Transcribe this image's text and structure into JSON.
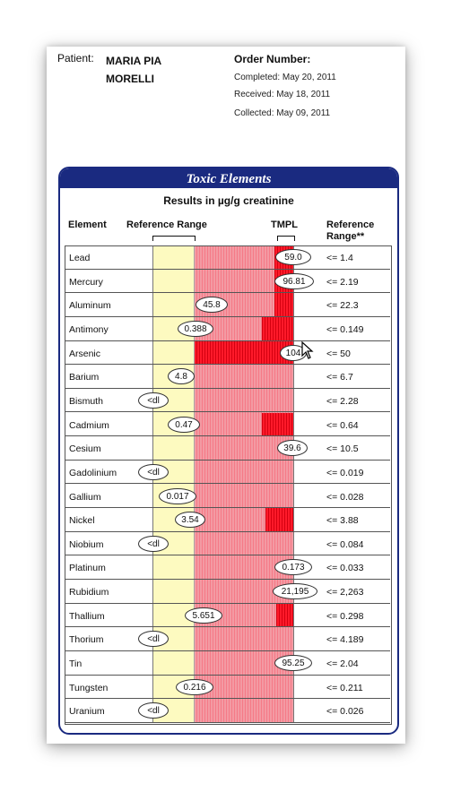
{
  "patient": {
    "label": "Patient:",
    "name_line1": "MARIA PIA",
    "name_line2": "MORELLI"
  },
  "order": {
    "label": "Order Number:",
    "completed": "Completed: May 20, 2011",
    "received": "Received: May 18, 2011",
    "collected": "Collected: May 09, 2011"
  },
  "panel": {
    "title": "Toxic Elements",
    "units": "Results in µg/g creatinine",
    "headers": {
      "element": "Element",
      "reference_range": "Reference Range",
      "tmpl": "TMPL",
      "ref_range_col": "Reference Range**"
    }
  },
  "rows": [
    {
      "element": "Lead",
      "result": "59.0",
      "reference": "<= 1.4"
    },
    {
      "element": "Mercury",
      "result": "96.81",
      "reference": "<= 2.19"
    },
    {
      "element": "Aluminum",
      "result": "45.8",
      "reference": "<= 22.3"
    },
    {
      "element": "Antimony",
      "result": "0.388",
      "reference": "<= 0.149"
    },
    {
      "element": "Arsenic",
      "result": "104",
      "reference": "<= 50"
    },
    {
      "element": "Barium",
      "result": "4.8",
      "reference": "<= 6.7"
    },
    {
      "element": "Bismuth",
      "result": "<dl",
      "reference": "<= 2.28"
    },
    {
      "element": "Cadmium",
      "result": "0.47",
      "reference": "<= 0.64"
    },
    {
      "element": "Cesium",
      "result": "39.6",
      "reference": "<= 10.5"
    },
    {
      "element": "Gadolinium",
      "result": "<dl",
      "reference": "<= 0.019"
    },
    {
      "element": "Gallium",
      "result": "0.017",
      "reference": "<= 0.028"
    },
    {
      "element": "Nickel",
      "result": "3.54",
      "reference": "<= 3.88"
    },
    {
      "element": "Niobium",
      "result": "<dl",
      "reference": "<= 0.084"
    },
    {
      "element": "Platinum",
      "result": "0.173",
      "reference": "<= 0.033"
    },
    {
      "element": "Rubidium",
      "result": "21,195",
      "reference": "<= 2,263"
    },
    {
      "element": "Thallium",
      "result": "5.651",
      "reference": "<= 0.298"
    },
    {
      "element": "Thorium",
      "result": "<dl",
      "reference": "<= 4.189"
    },
    {
      "element": "Tin",
      "result": "95.25",
      "reference": "<= 2.04"
    },
    {
      "element": "Tungsten",
      "result": "0.216",
      "reference": "<= 0.211"
    },
    {
      "element": "Uranium",
      "result": "<dl",
      "reference": "<= 0.026"
    }
  ],
  "colors": {
    "header_blue": "#1a2a80",
    "normal_zone": "#fdfac0",
    "elevated_zone": "#f39aa3",
    "toxic_zone": "#ff1a2a"
  }
}
